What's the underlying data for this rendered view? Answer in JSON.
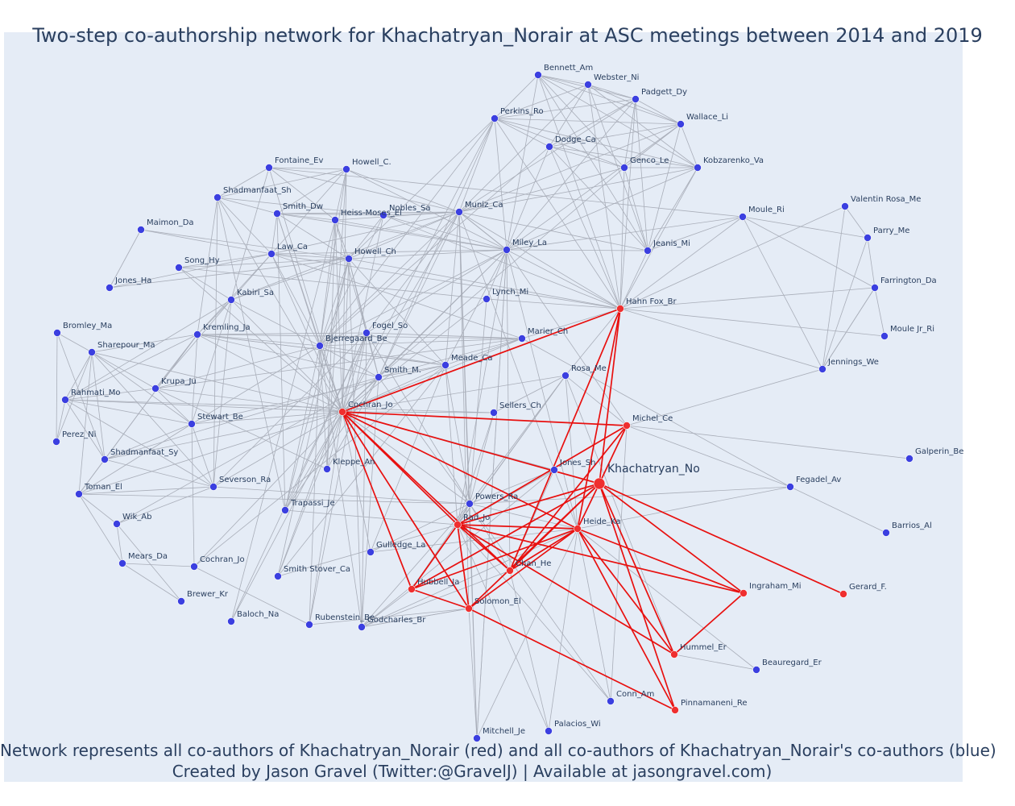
{
  "title": "Two-step co-authorship network for Khachatryan_Norair at ASC meetings between 2014 and 2019",
  "footer": {
    "line1": "Network represents all co-authors of Khachatryan_Norair (red) and all co-authors of Khachatryan_Norair's co-authors (blue)",
    "line2": "Created by Jason Gravel (Twitter:@GravelJ) | Available at jasongravel.com)"
  },
  "colors": {
    "background": "#e5ecf6",
    "first_degree": "#ef2f2f",
    "second_degree": "#3b3fe0",
    "first_degree_edge": "#e8100f",
    "second_degree_edge": "#a9aeb9",
    "text": "#2a3f5f"
  },
  "network": {
    "ego": "Khachatryan_No",
    "nodes": [
      {
        "id": "Khachatryan_No",
        "group": "ego"
      },
      {
        "id": "Hahn Fox_Br",
        "group": "first"
      },
      {
        "id": "Cochran_Jo",
        "group": "first"
      },
      {
        "id": "Michel_Ce",
        "group": "first"
      },
      {
        "id": "Rad_Jo",
        "group": "first"
      },
      {
        "id": "Heide_Ka",
        "group": "first"
      },
      {
        "id": "Chan_He",
        "group": "first"
      },
      {
        "id": "Hubbell_Ja",
        "group": "first"
      },
      {
        "id": "Solomon_El",
        "group": "first"
      },
      {
        "id": "Ingraham_Mi",
        "group": "first"
      },
      {
        "id": "Gerard_F.",
        "group": "first"
      },
      {
        "id": "Hummel_Er",
        "group": "first"
      },
      {
        "id": "Pinnamaneni_Re",
        "group": "first"
      },
      {
        "id": "Bennett_Am",
        "group": "second"
      },
      {
        "id": "Webster_Ni",
        "group": "second"
      },
      {
        "id": "Padgett_Dy",
        "group": "second"
      },
      {
        "id": "Perkins_Ro",
        "group": "second"
      },
      {
        "id": "Wallace_Li",
        "group": "second"
      },
      {
        "id": "Dodge_Ca",
        "group": "second"
      },
      {
        "id": "Fontaine_Ev",
        "group": "second"
      },
      {
        "id": "Howell_C.",
        "group": "second"
      },
      {
        "id": "Genco_Le",
        "group": "second"
      },
      {
        "id": "Kobzarenko_Va",
        "group": "second"
      },
      {
        "id": "Shadmanfaat_Sh",
        "group": "second"
      },
      {
        "id": "Smith_Dw",
        "group": "second"
      },
      {
        "id": "Nobles_Sa",
        "group": "second"
      },
      {
        "id": "Muniz_Ca",
        "group": "second"
      },
      {
        "id": "Heiss-Moses_El",
        "group": "second"
      },
      {
        "id": "Moule_Ri",
        "group": "second"
      },
      {
        "id": "Valentin Rosa_Me",
        "group": "second"
      },
      {
        "id": "Maimon_Da",
        "group": "second"
      },
      {
        "id": "Parry_Me",
        "group": "second"
      },
      {
        "id": "Law_Ca",
        "group": "second"
      },
      {
        "id": "Miley_La",
        "group": "second"
      },
      {
        "id": "Jeanis_Mi",
        "group": "second"
      },
      {
        "id": "Song_Hy",
        "group": "second"
      },
      {
        "id": "Howell_Ch",
        "group": "second"
      },
      {
        "id": "Jones_Ha",
        "group": "second"
      },
      {
        "id": "Farrington_Da",
        "group": "second"
      },
      {
        "id": "Kabiri_Sa",
        "group": "second"
      },
      {
        "id": "Lynch_Mi",
        "group": "second"
      },
      {
        "id": "Bromley_Ma",
        "group": "second"
      },
      {
        "id": "Kremling_Ja",
        "group": "second"
      },
      {
        "id": "Fogel_So",
        "group": "second"
      },
      {
        "id": "Marier_Ch",
        "group": "second"
      },
      {
        "id": "Moule Jr_Ri",
        "group": "second"
      },
      {
        "id": "Sharepour_Ma",
        "group": "second"
      },
      {
        "id": "Bjerregaard_Be",
        "group": "second"
      },
      {
        "id": "Meade_Ca",
        "group": "second"
      },
      {
        "id": "Jennings_We",
        "group": "second"
      },
      {
        "id": "Smith_M.",
        "group": "second"
      },
      {
        "id": "Rosa_Me",
        "group": "second"
      },
      {
        "id": "Krupa_Ju",
        "group": "second"
      },
      {
        "id": "Rahmati_Mo",
        "group": "second"
      },
      {
        "id": "Sellers_Ch",
        "group": "second"
      },
      {
        "id": "Stewart_Be",
        "group": "second"
      },
      {
        "id": "Perez_Ni",
        "group": "second"
      },
      {
        "id": "Shadmanfaat_Sy",
        "group": "second"
      },
      {
        "id": "Galperin_Be",
        "group": "second"
      },
      {
        "id": "Kleppe_An",
        "group": "second"
      },
      {
        "id": "Jones_Sh",
        "group": "second"
      },
      {
        "id": "Toman_El",
        "group": "second"
      },
      {
        "id": "Severson_Ra",
        "group": "second"
      },
      {
        "id": "Fegadel_Av",
        "group": "second"
      },
      {
        "id": "Powers_Ra",
        "group": "second"
      },
      {
        "id": "Trapassi_Je",
        "group": "second"
      },
      {
        "id": "Wik_Ab",
        "group": "second"
      },
      {
        "id": "Barrios_Al",
        "group": "second"
      },
      {
        "id": "Gulledge_La",
        "group": "second"
      },
      {
        "id": "Mears_Da",
        "group": "second"
      },
      {
        "id": "Cochran_Jo2",
        "label": "Cochran_Jo",
        "group": "second"
      },
      {
        "id": "Smith Stover_Ca",
        "group": "second"
      },
      {
        "id": "Brewer_Kr",
        "group": "second"
      },
      {
        "id": "Baloch_Na",
        "group": "second"
      },
      {
        "id": "Rubenstein_Be",
        "group": "second"
      },
      {
        "id": "Godcharles_Br",
        "group": "second"
      },
      {
        "id": "Beauregard_Er",
        "group": "second"
      },
      {
        "id": "Conn_Am",
        "group": "second"
      },
      {
        "id": "Mitchell_Je",
        "group": "second"
      },
      {
        "id": "Palacios_Wi",
        "group": "second"
      }
    ]
  }
}
